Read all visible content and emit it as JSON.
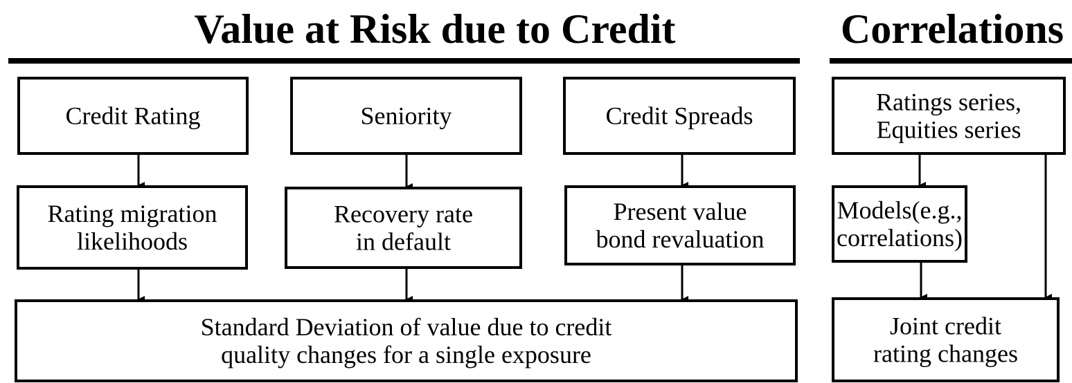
{
  "titles": {
    "left": "Value at Risk due to Credit",
    "right": "Correlations"
  },
  "nodes": [
    {
      "lines": [
        "Credit Rating"
      ]
    },
    {
      "lines": [
        "Seniority"
      ]
    },
    {
      "lines": [
        "Credit Spreads"
      ]
    },
    {
      "lines": [
        "Ratings series,",
        "Equities series"
      ]
    },
    {
      "lines": [
        "Rating migration",
        "likelihoods"
      ]
    },
    {
      "lines": [
        "Recovery rate",
        "in default"
      ]
    },
    {
      "lines": [
        "Present value",
        "bond revaluation"
      ]
    },
    {
      "lines": [
        "Models(e.g.,",
        "correlations)"
      ]
    },
    {
      "lines": [
        "Standard Deviation of value due to credit",
        "quality changes for a single exposure"
      ]
    },
    {
      "lines": [
        "Joint credit",
        "rating changes"
      ]
    }
  ]
}
